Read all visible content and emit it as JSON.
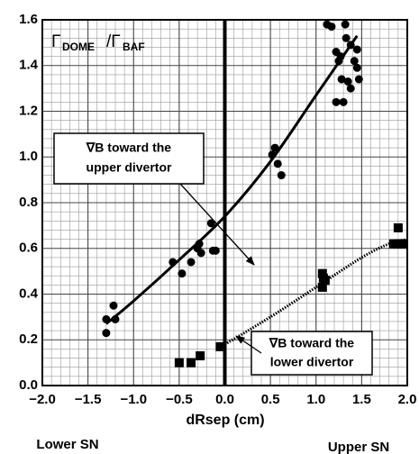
{
  "chart_data": {
    "type": "scatter",
    "xlabel": "dRsep (cm)",
    "ylabel_parts": [
      "Γ",
      "DOME",
      "/Γ",
      "BAF"
    ],
    "side_labels": [
      "Lower SN",
      "Upper SN"
    ],
    "annotations": [
      {
        "lines": [
          "∇B toward the",
          "upper divertor"
        ]
      },
      {
        "lines": [
          "∇B toward the",
          "lower divertor"
        ]
      }
    ],
    "xlim": [
      -2,
      2
    ],
    "ylim": [
      0,
      1.6
    ],
    "xticks": [
      {
        "value": -2,
        "label": "−2.0"
      },
      {
        "value": -1.5,
        "label": "−1.5"
      },
      {
        "value": -1,
        "label": "−1.0"
      },
      {
        "value": -0.5,
        "label": "−0.5"
      },
      {
        "value": 0,
        "label": "0.0"
      },
      {
        "value": 0.5,
        "label": "0.5"
      },
      {
        "value": 1,
        "label": "1.0"
      },
      {
        "value": 1.5,
        "label": "1.5"
      },
      {
        "value": 2,
        "label": "2.0"
      }
    ],
    "yticks": [
      {
        "value": 0,
        "label": "0.0"
      },
      {
        "value": 0.2,
        "label": "0.2"
      },
      {
        "value": 0.4,
        "label": "0.4"
      },
      {
        "value": 0.6,
        "label": "0.6"
      },
      {
        "value": 0.8,
        "label": "0.8"
      },
      {
        "value": 1,
        "label": "1.0"
      },
      {
        "value": 1.2,
        "label": "1.2"
      },
      {
        "value": 1.4,
        "label": "1.4"
      },
      {
        "value": 1.6,
        "label": "1.6"
      }
    ],
    "grid": true,
    "minor_grid": 5,
    "vline": 0,
    "series": [
      {
        "marker": "circle",
        "color": "#000000",
        "x": [
          -1.3,
          -1.3,
          -1.22,
          -1.2,
          -0.57,
          -0.47,
          -0.37,
          -0.3,
          -0.28,
          -0.26,
          -0.15,
          -0.13,
          -0.1,
          0.52,
          0.55,
          0.58,
          0.62,
          1.12,
          1.17,
          1.22,
          1.22,
          1.25,
          1.27,
          1.28,
          1.3,
          1.32,
          1.33,
          1.35,
          1.38,
          1.38,
          1.42,
          1.45,
          1.47,
          1.45
        ],
        "values": [
          0.29,
          0.23,
          0.35,
          0.29,
          0.54,
          0.49,
          0.54,
          0.6,
          0.62,
          0.58,
          0.71,
          0.59,
          0.59,
          1.01,
          1.04,
          0.97,
          0.92,
          1.58,
          1.57,
          1.46,
          1.24,
          1.42,
          1.44,
          1.34,
          1.24,
          1.58,
          1.52,
          1.33,
          1.49,
          1.3,
          1.42,
          1.39,
          1.34,
          1.47
        ]
      },
      {
        "marker": "square",
        "color": "#000000",
        "x": [
          -0.5,
          -0.37,
          -0.27,
          -0.05,
          1.07,
          1.07,
          1.08,
          1.1,
          1.85,
          1.9,
          1.9,
          1.95
        ],
        "values": [
          0.1,
          0.1,
          0.13,
          0.17,
          0.49,
          0.43,
          0.47,
          0.46,
          0.62,
          0.69,
          0.62,
          0.62
        ]
      },
      {
        "marker": "line",
        "dash": false,
        "color": "#000000",
        "x": [
          -1.3,
          -1,
          -0.5,
          0,
          0.5,
          1,
          1.45
        ],
        "values": [
          0.27,
          0.37,
          0.55,
          0.74,
          0.98,
          1.27,
          1.53
        ]
      },
      {
        "marker": "line",
        "dash": true,
        "color": "#000000",
        "x": [
          0,
          0.5,
          1,
          1.5,
          1.8,
          2
        ],
        "values": [
          0.18,
          0.3,
          0.43,
          0.56,
          0.62,
          0.64
        ]
      }
    ]
  }
}
